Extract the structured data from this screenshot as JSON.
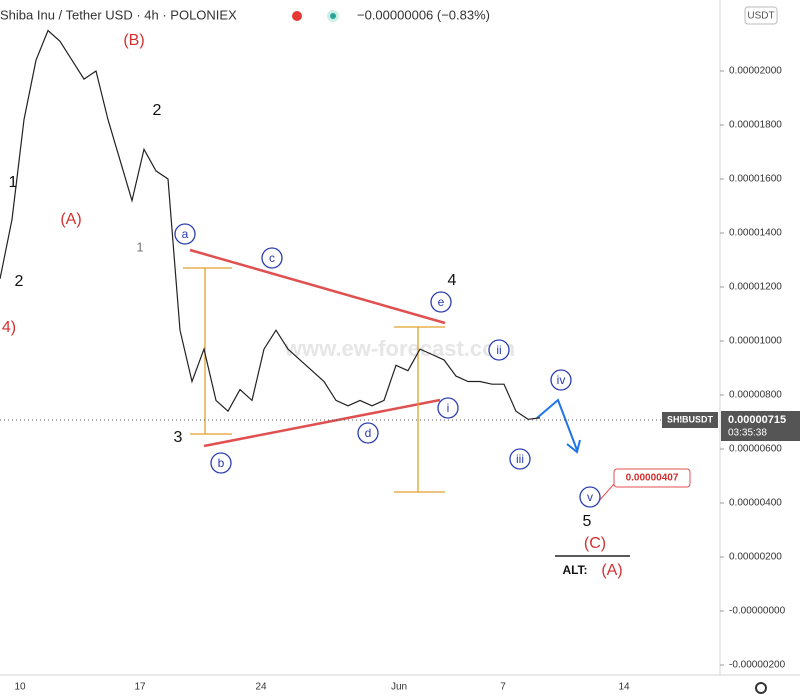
{
  "header": {
    "symbol": "Shiba Inu / Tether USD · 4h · POLONIEX",
    "change": "−0.00000006 (−0.83%)"
  },
  "currency_badge": "USDT",
  "watermark": "www.ew-forecast.com",
  "price_axis": {
    "ticks": [
      {
        "value": 2e-05,
        "label": "0.00002000"
      },
      {
        "value": 1.8e-05,
        "label": "0.00001800"
      },
      {
        "value": 1.6e-05,
        "label": "0.00001600"
      },
      {
        "value": 1.4e-05,
        "label": "0.00001400"
      },
      {
        "value": 1.2e-05,
        "label": "0.00001200"
      },
      {
        "value": 1e-05,
        "label": "0.00001000"
      },
      {
        "value": 8e-06,
        "label": "0.00000800"
      },
      {
        "value": 6e-06,
        "label": "0.00000600"
      },
      {
        "value": 4e-06,
        "label": "0.00000400"
      },
      {
        "value": 2e-06,
        "label": "0.00000200"
      },
      {
        "value": 0,
        "label": "-0.00000000"
      },
      {
        "value": -2e-06,
        "label": "-0.00000200"
      }
    ]
  },
  "date_axis": [
    "10",
    "17",
    "24",
    "Jun",
    "7",
    "14"
  ],
  "price_series": [
    1.23e-05,
    1.45e-05,
    1.82e-05,
    2.04e-05,
    2.15e-05,
    2.11e-05,
    2.04e-05,
    1.97e-05,
    2e-05,
    1.82e-05,
    1.67e-05,
    1.52e-05,
    1.71e-05,
    1.63e-05,
    1.6e-05,
    1.04e-05,
    8.5e-06,
    9.7e-06,
    7.8e-06,
    7.4e-06,
    8.2e-06,
    7.8e-06,
    9.7e-06,
    1.04e-05,
    9.7e-06,
    9.3e-06,
    8.9e-06,
    8.5e-06,
    7.8e-06,
    7.6e-06,
    7.8e-06,
    7.6e-06,
    7.8e-06,
    9.1e-06,
    8.9e-06,
    9.7e-06,
    9.5e-06,
    9.3e-06,
    8.7e-06,
    8.5e-06,
    8.5e-06,
    8.4e-06,
    8.4e-06,
    7.4e-06,
    7.1e-06,
    7.15e-06
  ],
  "last_price": {
    "symbol": "SHIBUSDT",
    "price": "0.00000715",
    "countdown": "03:35:38"
  },
  "target_callout": "0.00000407",
  "wave_labels": [
    "(B)",
    "2",
    "1",
    "(A)",
    "2",
    "4)",
    "1",
    "a",
    "c",
    "4",
    "e",
    "ii",
    "iv",
    "i",
    "d",
    "3",
    "b",
    "iii",
    "v",
    "5",
    "(C)",
    "ALT:",
    "(A)"
  ]
}
